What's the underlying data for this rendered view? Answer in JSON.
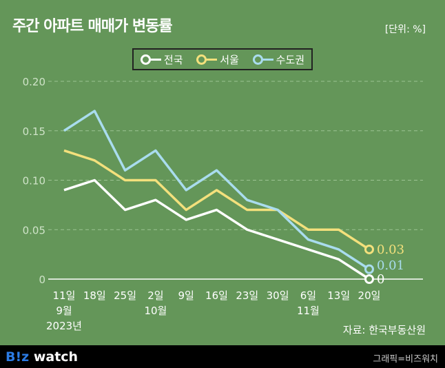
{
  "header": {
    "title": "주간 아파트 매매가 변동률",
    "unit": "[단위: %]"
  },
  "source": "자료: 한국부동산원",
  "footer": {
    "logo_b": "B!z",
    "logo_rest": " watch",
    "credit": "그래픽=비즈워치"
  },
  "chart_data": {
    "type": "line",
    "title": "주간 아파트 매매가 변동률",
    "ylabel": "%",
    "ylim": [
      0,
      0.2
    ],
    "yticks": [
      "0",
      "0.05",
      "0.10",
      "0.15",
      "0.20"
    ],
    "categories": [
      [
        "11일",
        "9월",
        "2023년"
      ],
      [
        "18일"
      ],
      [
        "25일"
      ],
      [
        "2일",
        "10월"
      ],
      [
        "9일"
      ],
      [
        "16일"
      ],
      [
        "23일"
      ],
      [
        "30일"
      ],
      [
        "6일",
        "11월"
      ],
      [
        "13일"
      ],
      [
        "20일"
      ]
    ],
    "series": [
      {
        "name": "전국",
        "color": "#ffffff",
        "values": [
          0.09,
          0.1,
          0.07,
          0.08,
          0.06,
          0.07,
          0.05,
          0.04,
          0.03,
          0.02,
          0
        ],
        "end_label": "0"
      },
      {
        "name": "서울",
        "color": "#f3e07c",
        "values": [
          0.13,
          0.12,
          0.1,
          0.1,
          0.07,
          0.09,
          0.07,
          0.07,
          0.05,
          0.05,
          0.03
        ],
        "end_label": "0.03"
      },
      {
        "name": "수도권",
        "color": "#a9dcee",
        "values": [
          0.15,
          0.17,
          0.11,
          0.13,
          0.09,
          0.11,
          0.08,
          0.07,
          0.04,
          0.03,
          0.01
        ],
        "end_label": "0.01"
      }
    ],
    "grid": true,
    "legend": "top-center"
  }
}
